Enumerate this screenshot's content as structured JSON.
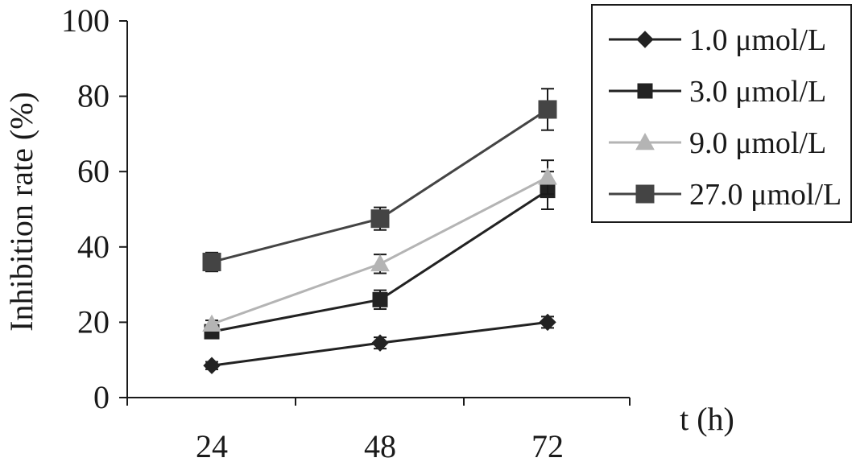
{
  "chart_data": {
    "type": "line",
    "title": "",
    "xlabel": "t (h)",
    "ylabel": "Inhibition rate (%)",
    "categories": [
      "24",
      "48",
      "72"
    ],
    "ylim": [
      0,
      100
    ],
    "yticks": [
      "0",
      "20",
      "40",
      "60",
      "80",
      "100"
    ],
    "grid": false,
    "legend_position": "top-right",
    "series": [
      {
        "name": "1.0 μmol/L",
        "marker": "diamond",
        "color": "#222222",
        "values": [
          8.5,
          14.5,
          20
        ],
        "errors": [
          1,
          1.5,
          1.5
        ]
      },
      {
        "name": "3.0 μmol/L",
        "marker": "square",
        "color": "#222222",
        "values": [
          17.5,
          26,
          55
        ],
        "errors": [
          1.5,
          2.5,
          5
        ]
      },
      {
        "name": "9.0 μmol/L",
        "marker": "triangle",
        "color": "#b4b4b4",
        "values": [
          19.5,
          35.5,
          58.5
        ],
        "errors": [
          1,
          2.5,
          4.5
        ]
      },
      {
        "name": "27.0 μmol/L",
        "marker": "square-large",
        "color": "#444444",
        "values": [
          36,
          47.5,
          76.5
        ],
        "errors": [
          2.5,
          3,
          5.5
        ]
      }
    ]
  }
}
